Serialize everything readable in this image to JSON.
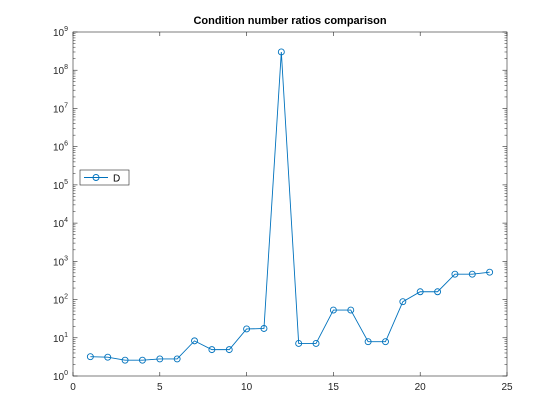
{
  "chart_data": {
    "type": "line",
    "title": "Condition number ratios comparison",
    "xlabel": "",
    "ylabel": "",
    "xlim": [
      0,
      25
    ],
    "ylim": [
      1,
      1000000000
    ],
    "yscale": "log",
    "grid": false,
    "legend_position": "left",
    "x_ticks": [
      0,
      5,
      10,
      15,
      20,
      25
    ],
    "x_tick_labels": [
      "0",
      "5",
      "10",
      "15",
      "20",
      "25"
    ],
    "y_ticks": [
      1,
      10,
      100,
      1000,
      10000,
      100000,
      1000000,
      10000000,
      100000000,
      1000000000
    ],
    "y_tick_labels": [
      {
        "base": "10",
        "exp": "0"
      },
      {
        "base": "10",
        "exp": "1"
      },
      {
        "base": "10",
        "exp": "2"
      },
      {
        "base": "10",
        "exp": "3"
      },
      {
        "base": "10",
        "exp": "4"
      },
      {
        "base": "10",
        "exp": "5"
      },
      {
        "base": "10",
        "exp": "6"
      },
      {
        "base": "10",
        "exp": "7"
      },
      {
        "base": "10",
        "exp": "8"
      },
      {
        "base": "10",
        "exp": "9"
      }
    ],
    "series": [
      {
        "name": "D",
        "color": "#0072bd",
        "marker": "circle",
        "x": [
          1,
          2,
          3,
          4,
          5,
          6,
          7,
          8,
          9,
          10,
          11,
          12,
          13,
          14,
          15,
          16,
          17,
          18,
          19,
          20,
          21,
          22,
          23,
          24
        ],
        "y": [
          3.2,
          3.1,
          2.6,
          2.6,
          2.8,
          2.8,
          8.3,
          4.9,
          4.9,
          17,
          17.5,
          300000000,
          7.1,
          7.1,
          53,
          53,
          7.9,
          7.9,
          88,
          160,
          160,
          460,
          460,
          520
        ]
      }
    ]
  }
}
